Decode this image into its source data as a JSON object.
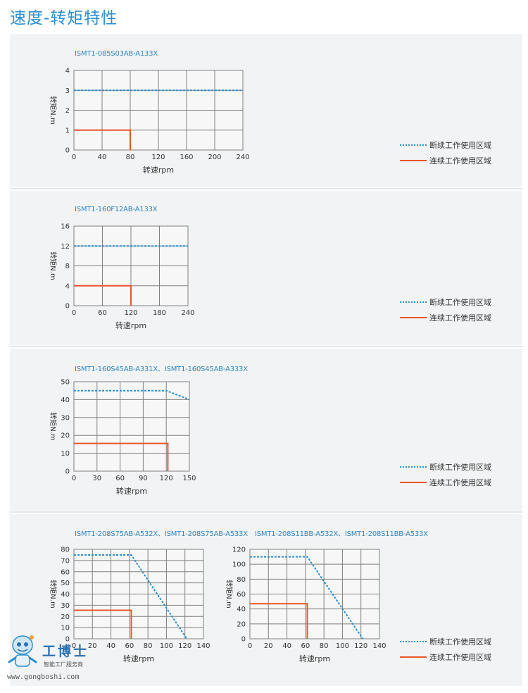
{
  "page": {
    "title": "速度-转矩特性"
  },
  "legend": {
    "intermittent": "断续工作使用区域",
    "continuous": "连续工作使用区域"
  },
  "colors": {
    "intermittent": "#2a8fd4",
    "continuous": "#e8562a",
    "grid": "#808080",
    "title": "#2a8fd4"
  },
  "watermark": {
    "brand": "工博士",
    "slogan": "智能工厂服务商",
    "url": "www.gongboshi.com"
  },
  "chart_data": [
    {
      "type": "line",
      "title": "ISMT1-085S03AB-A133X",
      "xlabel": "转速rpm",
      "ylabel": "转矩N.m",
      "xticks": [
        0,
        40,
        80,
        120,
        160,
        200,
        240
      ],
      "yticks": [
        0,
        1,
        2,
        3,
        4
      ],
      "xlim": [
        0,
        240
      ],
      "ylim": [
        0,
        4
      ],
      "grid": true,
      "series": [
        {
          "name": "断续工作使用区域",
          "style": "dotted",
          "points": [
            [
              0,
              3
            ],
            [
              240,
              3
            ]
          ]
        },
        {
          "name": "连续工作使用区域",
          "style": "solid",
          "points": [
            [
              0,
              1
            ],
            [
              80,
              1
            ],
            [
              80,
              0
            ]
          ]
        }
      ]
    },
    {
      "type": "line",
      "title": "ISMT1-160F12AB-A133X",
      "xlabel": "转速rpm",
      "ylabel": "转矩N.m",
      "xticks": [
        0,
        60,
        120,
        180,
        240
      ],
      "yticks": [
        0,
        4,
        8,
        12,
        16
      ],
      "xlim": [
        0,
        240
      ],
      "ylim": [
        0,
        16
      ],
      "grid": true,
      "series": [
        {
          "name": "断续工作使用区域",
          "style": "dotted",
          "points": [
            [
              0,
              12
            ],
            [
              240,
              12
            ]
          ]
        },
        {
          "name": "连续工作使用区域",
          "style": "solid",
          "points": [
            [
              0,
              4
            ],
            [
              120,
              4
            ],
            [
              120,
              0
            ]
          ]
        }
      ]
    },
    {
      "type": "line",
      "title": "ISMT1-160S45AB-A331X、ISMT1-160S45AB-A333X",
      "xlabel": "转速rpm",
      "ylabel": "转矩N.m",
      "xticks": [
        0,
        30,
        60,
        90,
        120,
        150
      ],
      "yticks": [
        0,
        10,
        20,
        30,
        40,
        50
      ],
      "xlim": [
        0,
        150
      ],
      "ylim": [
        0,
        50
      ],
      "grid": true,
      "series": [
        {
          "name": "断续工作使用区域",
          "style": "dotted",
          "points": [
            [
              0,
              45
            ],
            [
              120,
              45
            ],
            [
              150,
              40
            ]
          ]
        },
        {
          "name": "连续工作使用区域",
          "style": "solid",
          "points": [
            [
              0,
              15.5
            ],
            [
              122,
              15.5
            ],
            [
              122,
              0
            ]
          ]
        }
      ]
    },
    {
      "type": "line",
      "title": "ISMT1-208S75AB-A532X、ISMT1-208S75AB-A533X",
      "xlabel": "转速rpm",
      "ylabel": "转矩N.m",
      "xticks": [
        0,
        20,
        40,
        60,
        80,
        100,
        120,
        140
      ],
      "yticks": [
        0,
        10,
        20,
        30,
        40,
        50,
        60,
        70,
        80
      ],
      "xlim": [
        0,
        140
      ],
      "ylim": [
        0,
        80
      ],
      "grid": true,
      "series": [
        {
          "name": "断续工作使用区域",
          "style": "dotted",
          "points": [
            [
              0,
              75
            ],
            [
              62,
              75
            ],
            [
              122,
              0
            ]
          ]
        },
        {
          "name": "连续工作使用区域",
          "style": "solid",
          "points": [
            [
              0,
              25.5
            ],
            [
              62,
              25.5
            ],
            [
              62,
              0
            ]
          ]
        }
      ]
    },
    {
      "type": "line",
      "title": "ISMT1-208S11BB-A532X、ISMT1-208S11BB-A533X",
      "xlabel": "转速rpm",
      "ylabel": "转矩N.m",
      "xticks": [
        0,
        20,
        40,
        60,
        80,
        100,
        120,
        140
      ],
      "yticks": [
        0,
        20,
        40,
        60,
        80,
        100,
        120
      ],
      "xlim": [
        0,
        140
      ],
      "ylim": [
        0,
        120
      ],
      "grid": true,
      "series": [
        {
          "name": "断续工作使用区域",
          "style": "dotted",
          "points": [
            [
              0,
              110
            ],
            [
              62,
              110
            ],
            [
              122,
              0
            ]
          ]
        },
        {
          "name": "连续工作使用区域",
          "style": "solid",
          "points": [
            [
              0,
              47
            ],
            [
              62,
              47
            ],
            [
              62,
              0
            ]
          ]
        }
      ]
    }
  ]
}
